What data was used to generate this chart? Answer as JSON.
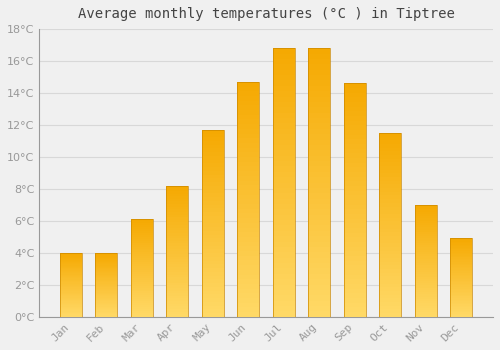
{
  "title": "Average monthly temperatures (°C ) in Tiptree",
  "months": [
    "Jan",
    "Feb",
    "Mar",
    "Apr",
    "May",
    "Jun",
    "Jul",
    "Aug",
    "Sep",
    "Oct",
    "Nov",
    "Dec"
  ],
  "values": [
    4.0,
    4.0,
    6.1,
    8.2,
    11.7,
    14.7,
    16.8,
    16.8,
    14.6,
    11.5,
    7.0,
    4.9
  ],
  "bar_color_top": "#F5A800",
  "bar_color_bottom": "#FFD966",
  "bar_edge_color": "#CC8800",
  "ylim": [
    0,
    18
  ],
  "yticks": [
    0,
    2,
    4,
    6,
    8,
    10,
    12,
    14,
    16,
    18
  ],
  "background_color": "#f0f0f0",
  "grid_color": "#d8d8d8",
  "title_fontsize": 10,
  "tick_fontsize": 8,
  "font_color": "#999999"
}
